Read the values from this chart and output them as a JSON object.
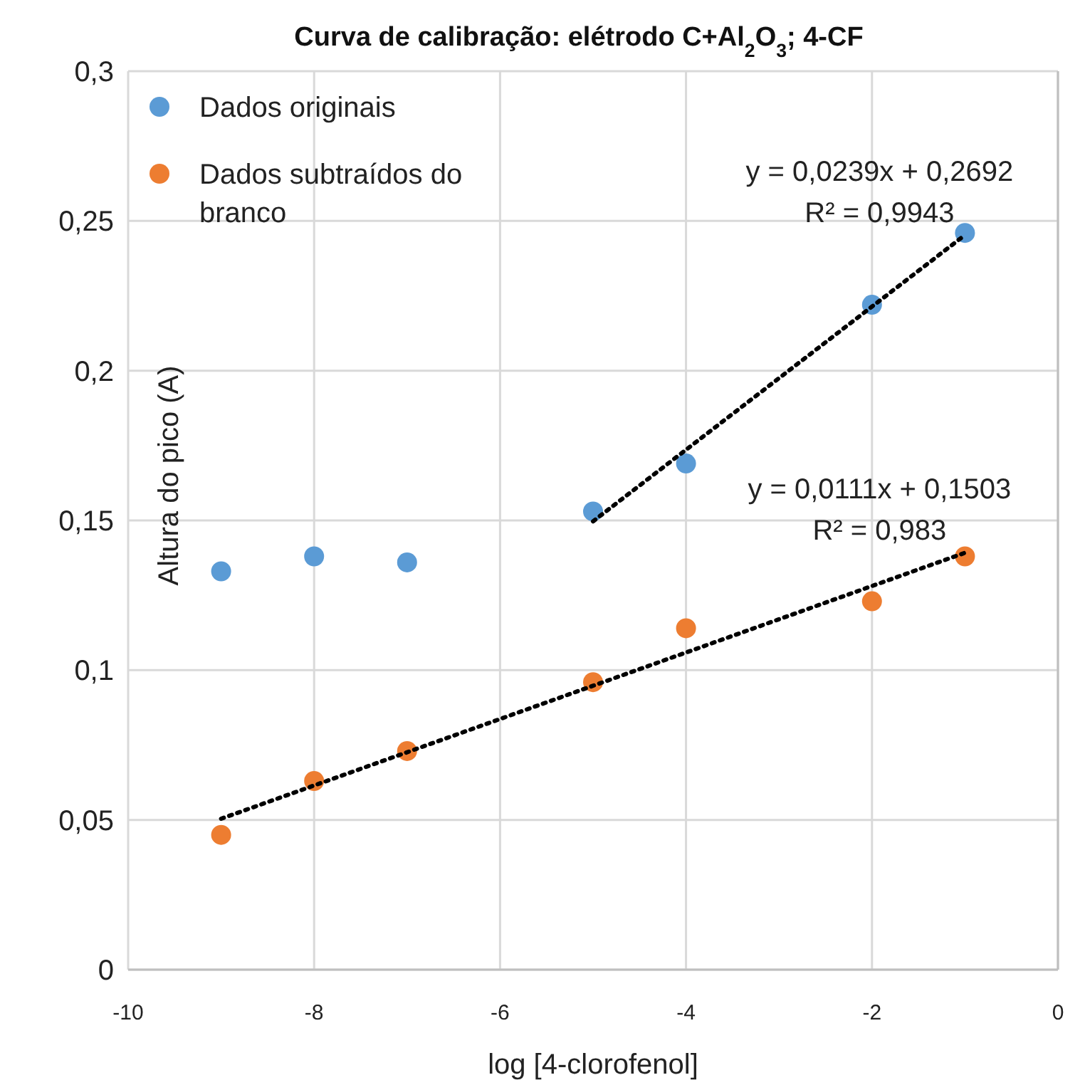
{
  "chart_data": {
    "type": "scatter",
    "title": "Curva de calibração: elétrodo C+Al$_{2}$O$_{3}$; 4-CF",
    "xlabel": "log [4-clorofenol]",
    "ylabel": "Altura do pico (A)",
    "xlim": [
      -10,
      0
    ],
    "xticks": [
      -10,
      -8,
      -6,
      -4,
      -2,
      0
    ],
    "ylim": [
      0,
      0.3
    ],
    "yticks": [
      {
        "value": 0,
        "label": "0"
      },
      {
        "value": 0.05,
        "label": "0,05"
      },
      {
        "value": 0.1,
        "label": "0,1"
      },
      {
        "value": 0.15,
        "label": "0,15"
      },
      {
        "value": 0.2,
        "label": "0,2"
      },
      {
        "value": 0.25,
        "label": "0,25"
      },
      {
        "value": 0.3,
        "label": "0,3"
      }
    ],
    "grid": true,
    "legend": "top left",
    "marker": "circle",
    "series": [
      {
        "name": "Dados originais",
        "color": "#5b9bd5",
        "x": [
          -9,
          -8,
          -7,
          -5,
          -4,
          -2,
          -1
        ],
        "values": [
          0.133,
          0.138,
          0.136,
          0.153,
          0.169,
          0.222,
          0.246
        ]
      },
      {
        "name": "Dados subtraídos do branco",
        "color": "#ed7d31",
        "x": [
          -9,
          -8,
          -7,
          -5,
          -4,
          -2,
          -1
        ],
        "values": [
          0.045,
          0.063,
          0.073,
          0.096,
          0.114,
          0.123,
          0.138
        ]
      },
      {
        "type": "line",
        "color": "#000000",
        "line_style": "dotted",
        "marker": "none",
        "x": [
          -5,
          -1
        ],
        "values": [
          0.1497,
          0.2453
        ]
      },
      {
        "type": "line",
        "color": "#000000",
        "line_style": "dotted",
        "marker": "none",
        "x": [
          -9,
          -1
        ],
        "values": [
          0.0504,
          0.1392
        ]
      }
    ],
    "annotations": [
      "y = 0,0239x + 0,2692",
      "R² = 0,9943",
      "y = 0,0111x + 0,1503",
      "R² = 0,983"
    ]
  }
}
